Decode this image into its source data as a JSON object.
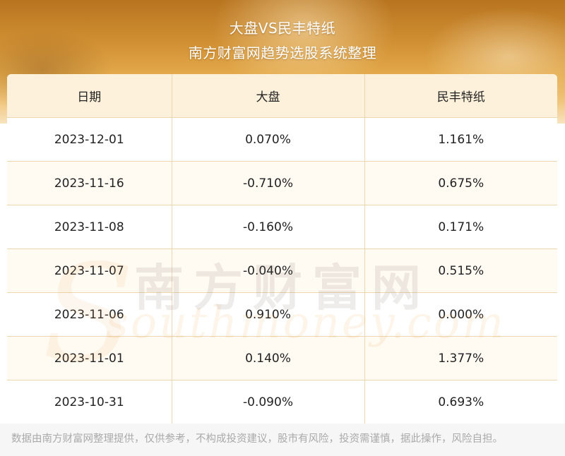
{
  "header": {
    "title": "大盘VS民丰特纸",
    "subtitle": "南方财富网趋势选股系统整理"
  },
  "table": {
    "columns": [
      "日期",
      "大盘",
      "民丰特纸"
    ],
    "rows": [
      [
        "2023-12-01",
        "0.070%",
        "1.161%"
      ],
      [
        "2023-11-16",
        "-0.710%",
        "0.675%"
      ],
      [
        "2023-11-08",
        "-0.160%",
        "0.171%"
      ],
      [
        "2023-11-07",
        "-0.040%",
        "0.515%"
      ],
      [
        "2023-11-06",
        "0.910%",
        "0.000%"
      ],
      [
        "2023-11-01",
        "0.140%",
        "1.377%"
      ],
      [
        "2023-10-31",
        "-0.090%",
        "0.693%"
      ]
    ]
  },
  "watermark": {
    "cn": "南方财富网",
    "en": "southmoney.com"
  },
  "footer": {
    "disclaimer": "数据由南方财富网整理提供，仅供参考，不构成投资建议，股市有风险，投资需谨慎，据此操作，风险自担。"
  },
  "colors": {
    "header_bg": "#fdf1db",
    "grid_line": "#eed7b0",
    "banner_accent": "#d19033"
  }
}
